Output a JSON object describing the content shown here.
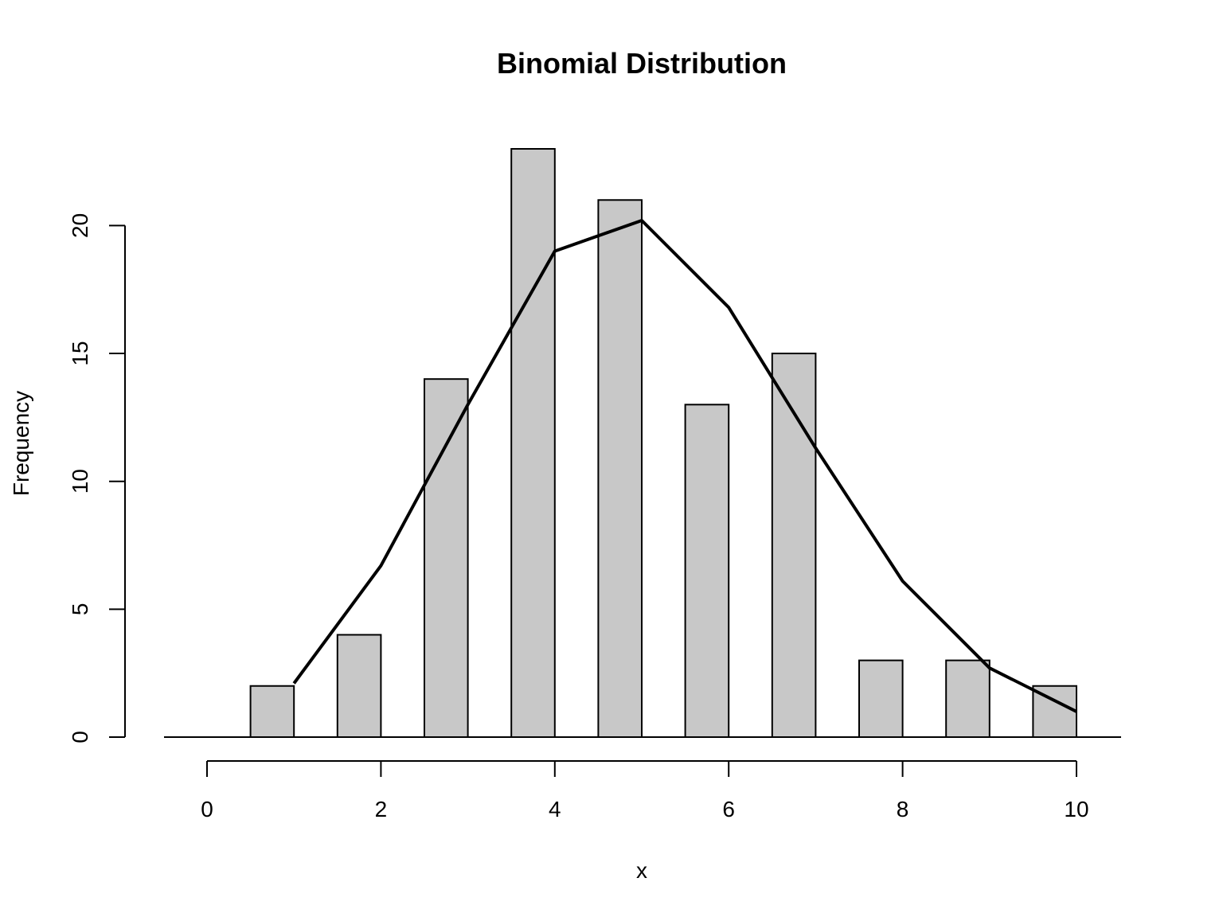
{
  "chart_data": {
    "type": "bar",
    "title": "Binomial Distribution",
    "xlabel": "x",
    "ylabel": "Frequency",
    "categories": [
      "0",
      "1",
      "2",
      "3",
      "4",
      "5",
      "6",
      "7",
      "8",
      "9",
      "10"
    ],
    "x": [
      0,
      1,
      2,
      3,
      4,
      5,
      6,
      7,
      8,
      9,
      10
    ],
    "values": [
      0,
      2,
      4,
      14,
      23,
      21,
      13,
      15,
      3,
      3,
      2
    ],
    "line": {
      "x": [
        1,
        2,
        3,
        4,
        5,
        6,
        7,
        8,
        9,
        10
      ],
      "y": [
        2.1,
        6.7,
        13.0,
        19.0,
        20.2,
        16.8,
        11.3,
        6.1,
        2.7,
        1.0
      ]
    },
    "xlim": [
      -0.5,
      10.5
    ],
    "ylim": [
      0,
      23
    ],
    "xticks": [
      0,
      2,
      4,
      6,
      8,
      10
    ],
    "yticks": [
      0,
      5,
      10,
      15,
      20
    ],
    "bar_color": "#c8c8c8",
    "line_color": "#000000",
    "grid": false
  }
}
